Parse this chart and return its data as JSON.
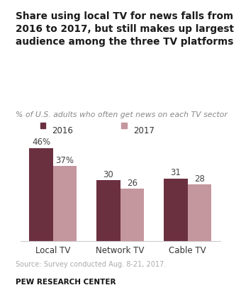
{
  "title": "Share using local TV for news falls from\n2016 to 2017, but still makes up largest\naudience among the three TV platforms",
  "subtitle": "% of U.S. adults who often get news on each TV sector",
  "categories": [
    "Local TV",
    "Network TV",
    "Cable TV"
  ],
  "values_2016": [
    46,
    30,
    31
  ],
  "values_2017": [
    37,
    26,
    28
  ],
  "labels_2016": [
    "46%",
    "30",
    "31"
  ],
  "labels_2017": [
    "37%",
    "26",
    "28"
  ],
  "color_2016": "#6b3040",
  "color_2017": "#c4969e",
  "bar_width": 0.35,
  "ylim": [
    0,
    55
  ],
  "source_text": "Source: Survey conducted Aug. 8-21, 2017.",
  "branding": "PEW RESEARCH CENTER",
  "legend_labels": [
    "2016",
    "2017"
  ],
  "title_color": "#1a1a1a",
  "subtitle_color": "#888888",
  "source_color": "#aaaaaa",
  "branding_color": "#111111",
  "background_color": "#ffffff"
}
